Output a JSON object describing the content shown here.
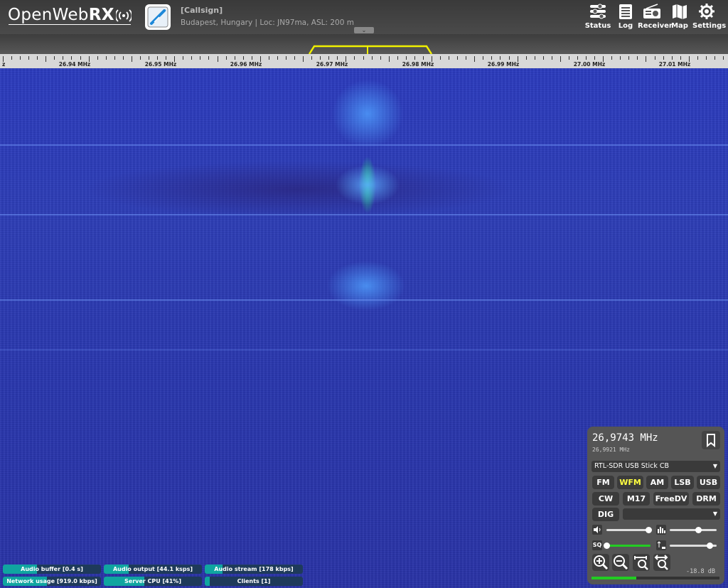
{
  "header": {
    "logo_light": "Open",
    "logo_mid": "Web",
    "logo_bold": "RX",
    "callsign": "[Callsign]",
    "location": "Budapest, Hungary | Loc: JN97ma, ASL: 200 m",
    "toggle": "⌄",
    "nav": [
      {
        "label": "Status",
        "icon": "status-icon"
      },
      {
        "label": "Log",
        "icon": "log-icon"
      },
      {
        "label": "Receiver",
        "icon": "receiver-icon"
      },
      {
        "label": "Map",
        "icon": "map-icon"
      },
      {
        "label": "Settings",
        "icon": "settings-icon"
      }
    ]
  },
  "scale": {
    "left_fragment": "z",
    "labels": [
      "26.94 MHz",
      "26.95 MHz",
      "26.96 MHz",
      "26.97 MHz",
      "26.98 MHz",
      "26.99 MHz",
      "27.00 MHz",
      "27.01 MHz"
    ]
  },
  "receiver": {
    "frequency": "26,9743 MHz",
    "offset_frequency": "26,9921 MHz",
    "profile": "RTL-SDR USB Stick CB",
    "modes_row1": [
      "FM",
      "WFM",
      "AM",
      "LSB",
      "USB"
    ],
    "modes_row2": [
      "CW",
      "M17",
      "FreeDV",
      "DRM"
    ],
    "digital_label": "DIG",
    "digital_select": "",
    "active_mode": "WFM",
    "volume": 0.95,
    "nr": 0.6,
    "squelch": 0.0,
    "squelch_level": 0.87,
    "agc": 0.85,
    "db_readout": "-18.8 dB",
    "smeter_level": 0.35,
    "squelch_label": "SQ"
  },
  "status_bars": [
    {
      "label": "Audio buffer [0.4 s]",
      "level": 0.35
    },
    {
      "label": "Audio output [44.1 ksps]",
      "level": 0.25
    },
    {
      "label": "Audio stream [178 kbps]",
      "level": 0.18
    },
    {
      "label": "Network usage [919.0 kbps]",
      "level": 0.45
    },
    {
      "label": "Server CPU [41%]",
      "level": 0.41
    },
    {
      "label": "Clients [1]",
      "level": 0.05
    }
  ]
}
